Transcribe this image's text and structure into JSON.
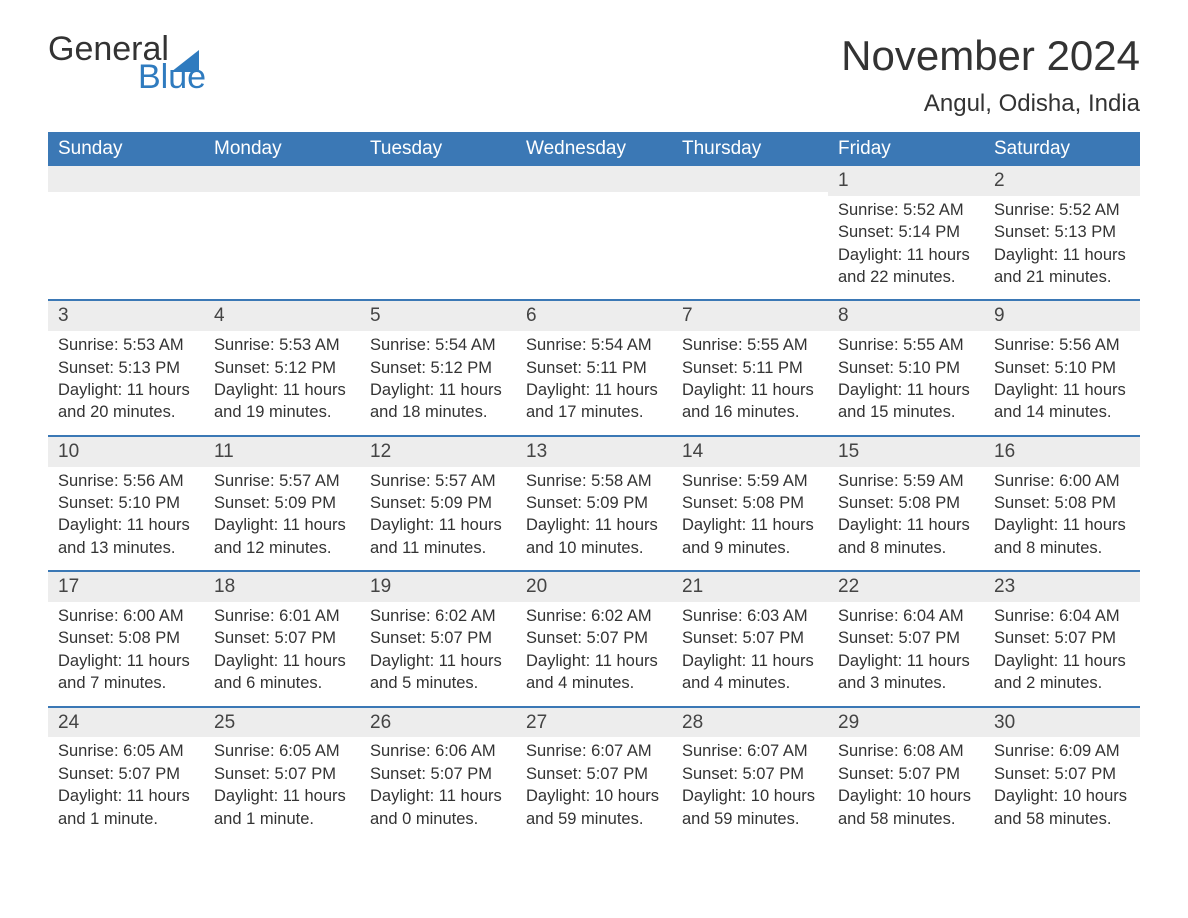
{
  "logo": {
    "text1": "General",
    "text2": "Blue",
    "accent_color": "#2f7bbf"
  },
  "title": "November 2024",
  "location": "Angul, Odisha, India",
  "colors": {
    "header_bg": "#3b78b5",
    "header_text": "#ffffff",
    "daynum_bg": "#ededed",
    "week_border": "#3b78b5",
    "body_text": "#333333",
    "page_bg": "#ffffff"
  },
  "typography": {
    "title_fontsize": 42,
    "location_fontsize": 24,
    "header_fontsize": 19,
    "daynum_fontsize": 19,
    "body_fontsize": 16.5,
    "font_family": "Arial"
  },
  "layout": {
    "columns": 7,
    "rows": 5,
    "first_day_column_index": 5
  },
  "day_headers": [
    "Sunday",
    "Monday",
    "Tuesday",
    "Wednesday",
    "Thursday",
    "Friday",
    "Saturday"
  ],
  "weeks": [
    [
      null,
      null,
      null,
      null,
      null,
      {
        "n": "1",
        "sunrise": "Sunrise: 5:52 AM",
        "sunset": "Sunset: 5:14 PM",
        "d1": "Daylight: 11 hours",
        "d2": "and 22 minutes."
      },
      {
        "n": "2",
        "sunrise": "Sunrise: 5:52 AM",
        "sunset": "Sunset: 5:13 PM",
        "d1": "Daylight: 11 hours",
        "d2": "and 21 minutes."
      }
    ],
    [
      {
        "n": "3",
        "sunrise": "Sunrise: 5:53 AM",
        "sunset": "Sunset: 5:13 PM",
        "d1": "Daylight: 11 hours",
        "d2": "and 20 minutes."
      },
      {
        "n": "4",
        "sunrise": "Sunrise: 5:53 AM",
        "sunset": "Sunset: 5:12 PM",
        "d1": "Daylight: 11 hours",
        "d2": "and 19 minutes."
      },
      {
        "n": "5",
        "sunrise": "Sunrise: 5:54 AM",
        "sunset": "Sunset: 5:12 PM",
        "d1": "Daylight: 11 hours",
        "d2": "and 18 minutes."
      },
      {
        "n": "6",
        "sunrise": "Sunrise: 5:54 AM",
        "sunset": "Sunset: 5:11 PM",
        "d1": "Daylight: 11 hours",
        "d2": "and 17 minutes."
      },
      {
        "n": "7",
        "sunrise": "Sunrise: 5:55 AM",
        "sunset": "Sunset: 5:11 PM",
        "d1": "Daylight: 11 hours",
        "d2": "and 16 minutes."
      },
      {
        "n": "8",
        "sunrise": "Sunrise: 5:55 AM",
        "sunset": "Sunset: 5:10 PM",
        "d1": "Daylight: 11 hours",
        "d2": "and 15 minutes."
      },
      {
        "n": "9",
        "sunrise": "Sunrise: 5:56 AM",
        "sunset": "Sunset: 5:10 PM",
        "d1": "Daylight: 11 hours",
        "d2": "and 14 minutes."
      }
    ],
    [
      {
        "n": "10",
        "sunrise": "Sunrise: 5:56 AM",
        "sunset": "Sunset: 5:10 PM",
        "d1": "Daylight: 11 hours",
        "d2": "and 13 minutes."
      },
      {
        "n": "11",
        "sunrise": "Sunrise: 5:57 AM",
        "sunset": "Sunset: 5:09 PM",
        "d1": "Daylight: 11 hours",
        "d2": "and 12 minutes."
      },
      {
        "n": "12",
        "sunrise": "Sunrise: 5:57 AM",
        "sunset": "Sunset: 5:09 PM",
        "d1": "Daylight: 11 hours",
        "d2": "and 11 minutes."
      },
      {
        "n": "13",
        "sunrise": "Sunrise: 5:58 AM",
        "sunset": "Sunset: 5:09 PM",
        "d1": "Daylight: 11 hours",
        "d2": "and 10 minutes."
      },
      {
        "n": "14",
        "sunrise": "Sunrise: 5:59 AM",
        "sunset": "Sunset: 5:08 PM",
        "d1": "Daylight: 11 hours",
        "d2": "and 9 minutes."
      },
      {
        "n": "15",
        "sunrise": "Sunrise: 5:59 AM",
        "sunset": "Sunset: 5:08 PM",
        "d1": "Daylight: 11 hours",
        "d2": "and 8 minutes."
      },
      {
        "n": "16",
        "sunrise": "Sunrise: 6:00 AM",
        "sunset": "Sunset: 5:08 PM",
        "d1": "Daylight: 11 hours",
        "d2": "and 8 minutes."
      }
    ],
    [
      {
        "n": "17",
        "sunrise": "Sunrise: 6:00 AM",
        "sunset": "Sunset: 5:08 PM",
        "d1": "Daylight: 11 hours",
        "d2": "and 7 minutes."
      },
      {
        "n": "18",
        "sunrise": "Sunrise: 6:01 AM",
        "sunset": "Sunset: 5:07 PM",
        "d1": "Daylight: 11 hours",
        "d2": "and 6 minutes."
      },
      {
        "n": "19",
        "sunrise": "Sunrise: 6:02 AM",
        "sunset": "Sunset: 5:07 PM",
        "d1": "Daylight: 11 hours",
        "d2": "and 5 minutes."
      },
      {
        "n": "20",
        "sunrise": "Sunrise: 6:02 AM",
        "sunset": "Sunset: 5:07 PM",
        "d1": "Daylight: 11 hours",
        "d2": "and 4 minutes."
      },
      {
        "n": "21",
        "sunrise": "Sunrise: 6:03 AM",
        "sunset": "Sunset: 5:07 PM",
        "d1": "Daylight: 11 hours",
        "d2": "and 4 minutes."
      },
      {
        "n": "22",
        "sunrise": "Sunrise: 6:04 AM",
        "sunset": "Sunset: 5:07 PM",
        "d1": "Daylight: 11 hours",
        "d2": "and 3 minutes."
      },
      {
        "n": "23",
        "sunrise": "Sunrise: 6:04 AM",
        "sunset": "Sunset: 5:07 PM",
        "d1": "Daylight: 11 hours",
        "d2": "and 2 minutes."
      }
    ],
    [
      {
        "n": "24",
        "sunrise": "Sunrise: 6:05 AM",
        "sunset": "Sunset: 5:07 PM",
        "d1": "Daylight: 11 hours",
        "d2": "and 1 minute."
      },
      {
        "n": "25",
        "sunrise": "Sunrise: 6:05 AM",
        "sunset": "Sunset: 5:07 PM",
        "d1": "Daylight: 11 hours",
        "d2": "and 1 minute."
      },
      {
        "n": "26",
        "sunrise": "Sunrise: 6:06 AM",
        "sunset": "Sunset: 5:07 PM",
        "d1": "Daylight: 11 hours",
        "d2": "and 0 minutes."
      },
      {
        "n": "27",
        "sunrise": "Sunrise: 6:07 AM",
        "sunset": "Sunset: 5:07 PM",
        "d1": "Daylight: 10 hours",
        "d2": "and 59 minutes."
      },
      {
        "n": "28",
        "sunrise": "Sunrise: 6:07 AM",
        "sunset": "Sunset: 5:07 PM",
        "d1": "Daylight: 10 hours",
        "d2": "and 59 minutes."
      },
      {
        "n": "29",
        "sunrise": "Sunrise: 6:08 AM",
        "sunset": "Sunset: 5:07 PM",
        "d1": "Daylight: 10 hours",
        "d2": "and 58 minutes."
      },
      {
        "n": "30",
        "sunrise": "Sunrise: 6:09 AM",
        "sunset": "Sunset: 5:07 PM",
        "d1": "Daylight: 10 hours",
        "d2": "and 58 minutes."
      }
    ]
  ]
}
